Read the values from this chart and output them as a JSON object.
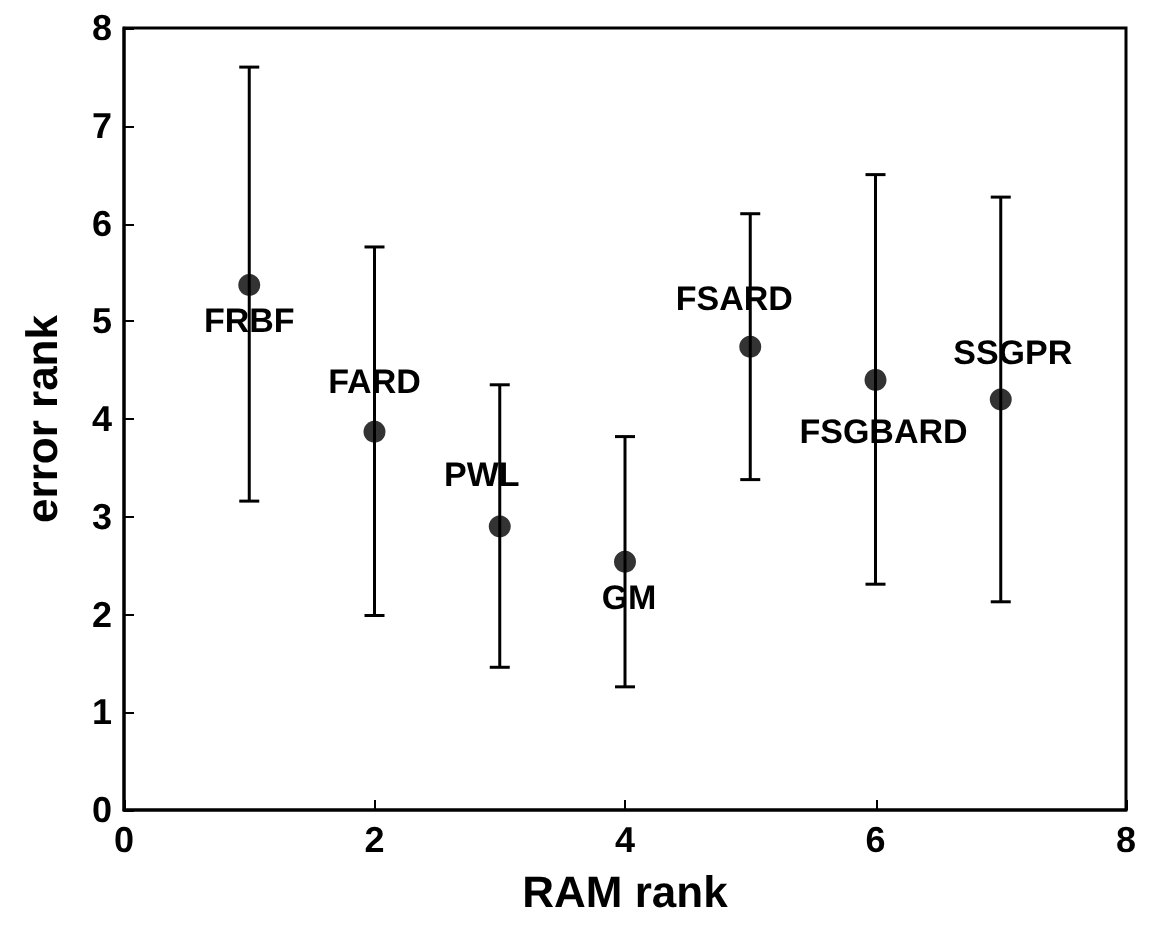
{
  "chart_data": {
    "type": "scatter",
    "xlabel": "RAM rank",
    "ylabel": "error rank",
    "x": [
      1,
      2,
      3,
      4,
      5,
      6,
      7
    ],
    "series": [
      {
        "color": "#000000",
        "values": [
          5.37,
          3.87,
          2.9,
          2.54,
          4.74,
          4.4,
          4.2
        ],
        "errors": [
          [
            3.16,
            7.6
          ],
          [
            1.99,
            5.76
          ],
          [
            1.46,
            4.35
          ],
          [
            1.26,
            3.82
          ],
          [
            3.38,
            6.1
          ],
          [
            2.31,
            6.5
          ],
          [
            2.13,
            6.27
          ]
        ]
      }
    ],
    "annotations": [
      {
        "text": "FRBF",
        "x": 1,
        "y": 5.37
      },
      {
        "text": "FARD",
        "x": 2,
        "y": 3.87
      },
      {
        "text": "PWL",
        "x": 3,
        "y": 2.9
      },
      {
        "text": "GM",
        "x": 4,
        "y": 2.54
      },
      {
        "text": "FSARD",
        "x": 5,
        "y": 4.74
      },
      {
        "text": "FSGBARD",
        "x": 6,
        "y": 4.4
      },
      {
        "text": "SSGPR",
        "x": 7,
        "y": 4.2
      }
    ],
    "xlim": [
      0,
      8
    ],
    "xticks": [
      0,
      2,
      4,
      6,
      8
    ],
    "ylim": [
      0,
      8
    ],
    "yticks": [
      0,
      1,
      2,
      3,
      4,
      5,
      6,
      7,
      8
    ],
    "grid": false,
    "legend": false,
    "marker": "circle"
  }
}
